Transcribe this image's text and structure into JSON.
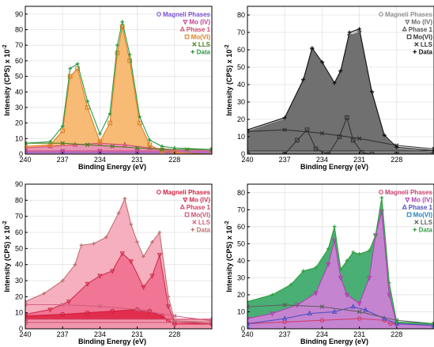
{
  "chart_data": [
    {
      "type": "area",
      "xlabel": "Binding Energy (eV)",
      "ylabel": "Intensity (CPS) x 10",
      "ylabel_exponent": "-2",
      "xlim": [
        240,
        225
      ],
      "ylim": [
        0,
        95
      ],
      "x_ticks": [
        "240",
        "237",
        "234",
        "231",
        "228"
      ],
      "y_ticks": [
        "0",
        "10",
        "20",
        "30",
        "40",
        "50",
        "60",
        "70",
        "80",
        "90"
      ],
      "legend_position": "top-right",
      "series": [
        {
          "name": "Magneli Phases",
          "color": "#7b4fd0",
          "marker": "circle",
          "fill": "",
          "x": [
            240,
            237,
            234,
            231,
            228,
            225
          ],
          "y": [
            1,
            1,
            1,
            1,
            1,
            1
          ]
        },
        {
          "name": "Mo (IV)",
          "color": "#c04090",
          "marker": "triangle-down",
          "fill": "",
          "x": [
            240,
            237,
            234,
            231,
            228,
            225
          ],
          "y": [
            2,
            2,
            2,
            2,
            2,
            2
          ]
        },
        {
          "name": "Phase 1",
          "color": "#d05070",
          "marker": "triangle-up",
          "fill": "#e890b8",
          "x": [
            240,
            238,
            236,
            234,
            232,
            230,
            228,
            225
          ],
          "y": [
            4,
            5,
            6,
            7,
            6,
            4,
            3,
            3
          ]
        },
        {
          "name": "Mo(VI)",
          "color": "#e08020",
          "marker": "square",
          "fill": "#f6b56a",
          "x": [
            240,
            238,
            237,
            236.4,
            235.8,
            235,
            234,
            233.2,
            232.6,
            232.2,
            231.6,
            230.8,
            230,
            229,
            228,
            225
          ],
          "y": [
            5,
            6,
            15,
            50,
            55,
            30,
            8,
            20,
            65,
            82,
            60,
            20,
            6,
            2,
            1,
            0
          ]
        },
        {
          "name": "LLS",
          "color": "#508020",
          "marker": "x",
          "fill": "",
          "x": [
            240,
            237,
            235,
            233,
            231,
            229,
            227,
            225
          ],
          "y": [
            7,
            7,
            6,
            5,
            4,
            3,
            3,
            3
          ]
        },
        {
          "name": "Data",
          "color": "#2a9a40",
          "marker": "plus",
          "fill": "",
          "x": [
            240,
            238,
            237,
            236.4,
            235.8,
            235,
            234,
            233.2,
            232.6,
            232.2,
            231.6,
            230.8,
            230,
            229,
            228,
            225
          ],
          "y": [
            7,
            8,
            18,
            55,
            58,
            34,
            13,
            26,
            70,
            85,
            64,
            24,
            9,
            5,
            4,
            3
          ]
        }
      ]
    },
    {
      "type": "area",
      "xlabel": "Binding Energy (eV)",
      "ylabel": "Intensity (CPS) x 10",
      "ylabel_exponent": "-2",
      "xlim": [
        240,
        225
      ],
      "ylim": [
        0,
        85
      ],
      "x_ticks": [
        "240",
        "237",
        "234",
        "231",
        "228"
      ],
      "y_ticks": [
        "0",
        "10",
        "20",
        "30",
        "40",
        "50",
        "60",
        "70",
        "80"
      ],
      "legend_position": "top-right",
      "series": [
        {
          "name": "Magneli Phases",
          "color": "#909090",
          "marker": "circle",
          "fill": "",
          "x": [
            240,
            225
          ],
          "y": [
            1,
            1
          ]
        },
        {
          "name": "Mo (IV)",
          "color": "#6a6a6a",
          "marker": "triangle-down",
          "fill": "#696969",
          "x": [
            240,
            237,
            235.5,
            234.8,
            234,
            233,
            232.5,
            231.8,
            231,
            230,
            229,
            228,
            225
          ],
          "y": [
            13,
            20,
            42,
            60,
            52,
            40,
            47,
            68,
            70,
            35,
            10,
            3,
            1
          ]
        },
        {
          "name": "Phase 1",
          "color": "#505050",
          "marker": "triangle-up",
          "fill": "",
          "x": [
            240,
            225
          ],
          "y": [
            2,
            2
          ]
        },
        {
          "name": "Mo(VI)",
          "color": "#333333",
          "marker": "square",
          "fill": "",
          "x": [
            240,
            237,
            236,
            235.2,
            234.5,
            233.5,
            232.6,
            232,
            231.5,
            230.8,
            230,
            228,
            225
          ],
          "y": [
            0,
            0,
            8,
            14,
            3,
            0,
            10,
            21,
            8,
            1,
            0,
            0,
            0
          ]
        },
        {
          "name": "LLS",
          "color": "#333333",
          "marker": "x",
          "fill": "",
          "x": [
            240,
            237,
            234,
            231,
            228,
            225
          ],
          "y": [
            13,
            14,
            12,
            9,
            5,
            3
          ]
        },
        {
          "name": "Data",
          "color": "#111111",
          "marker": "plus",
          "fill": "#b8b8b8",
          "x": [
            240,
            237,
            235.5,
            234.8,
            234,
            233,
            232.5,
            231.8,
            231,
            230,
            229,
            228,
            225
          ],
          "y": [
            14,
            21,
            43,
            61,
            53,
            41,
            48,
            70,
            72,
            36,
            11,
            4,
            2
          ]
        }
      ]
    },
    {
      "type": "area",
      "xlabel": "Binding Energy (eV)",
      "ylabel": "Intensity (CPS) x 10",
      "ylabel_exponent": "-2",
      "xlim": [
        240,
        225
      ],
      "ylim": [
        0,
        90
      ],
      "x_ticks": [
        "240",
        "237",
        "234",
        "231",
        "228"
      ],
      "y_ticks": [
        "0",
        "10",
        "20",
        "30",
        "40",
        "50",
        "60",
        "70",
        "80",
        "90"
      ],
      "legend_position": "top-right",
      "series": [
        {
          "name": "Magneli Phases",
          "color": "#d02040",
          "marker": "circle",
          "fill": "#e02848",
          "x": [
            240,
            237,
            235,
            233,
            231,
            230,
            229,
            228.5,
            228,
            225
          ],
          "y": [
            8,
            9,
            10,
            11,
            12,
            11,
            8,
            5,
            3,
            3
          ]
        },
        {
          "name": "Mo (IV)",
          "color": "#d03050",
          "marker": "triangle-down",
          "fill": "#f07090",
          "x": [
            240,
            238,
            236.5,
            235,
            234,
            233,
            232.2,
            231.5,
            230.5,
            229.8,
            229.2,
            228.5,
            228,
            225
          ],
          "y": [
            9,
            12,
            17,
            28,
            33,
            36,
            47,
            42,
            26,
            33,
            46,
            14,
            4,
            3
          ]
        },
        {
          "name": "Phase 1",
          "color": "#d04060",
          "marker": "triangle-up",
          "fill": "#f2a0b4",
          "x": [
            240,
            225
          ],
          "y": [
            6,
            6
          ]
        },
        {
          "name": "Mo(VI)",
          "color": "#d05070",
          "marker": "square",
          "fill": "",
          "x": [
            240,
            225
          ],
          "y": [
            4,
            4
          ]
        },
        {
          "name": "LLS",
          "color": "#d06080",
          "marker": "x",
          "fill": "",
          "x": [
            240,
            237,
            234,
            231,
            228,
            225
          ],
          "y": [
            15,
            15,
            14,
            12,
            8,
            5
          ]
        },
        {
          "name": "Data",
          "color": "#c07070",
          "marker": "plus",
          "fill": "#f5a8b8",
          "x": [
            240,
            238.5,
            237,
            236,
            235.5,
            234.5,
            233.5,
            232.5,
            232,
            231.5,
            231,
            230.5,
            229.8,
            229.2,
            228.5,
            228,
            225
          ],
          "y": [
            17,
            22,
            30,
            40,
            52,
            53,
            57,
            72,
            81,
            65,
            54,
            45,
            54,
            60,
            20,
            5,
            4
          ]
        }
      ]
    },
    {
      "type": "area",
      "xlabel": "Binding Energy (eV)",
      "ylabel": "Intensity (CPS) x 10",
      "ylabel_exponent": "-2",
      "xlim": [
        240,
        225
      ],
      "ylim": [
        0,
        85
      ],
      "x_ticks": [
        "240",
        "237",
        "234",
        "231",
        "228"
      ],
      "y_ticks": [
        "0",
        "10",
        "20",
        "30",
        "40",
        "50",
        "60",
        "70",
        "80"
      ],
      "legend_position": "top-right",
      "series": [
        {
          "name": "Magneli Phases",
          "color": "#d04070",
          "marker": "circle",
          "fill": "",
          "x": [
            240,
            237,
            234,
            231,
            229,
            228.5,
            225
          ],
          "y": [
            3,
            4,
            5,
            6,
            5,
            3,
            2
          ]
        },
        {
          "name": "Mo (IV)",
          "color": "#b040b0",
          "marker": "triangle-down",
          "fill": "#d080d8",
          "x": [
            240,
            238,
            236,
            234.5,
            233.5,
            233,
            232.5,
            232,
            231,
            230.2,
            229.7,
            229.2,
            228.6,
            228,
            225
          ],
          "y": [
            6,
            9,
            14,
            21,
            38,
            52,
            30,
            20,
            15,
            30,
            55,
            69,
            20,
            3,
            2
          ]
        },
        {
          "name": "Phase 1",
          "color": "#5050c0",
          "marker": "triangle-up",
          "fill": "",
          "x": [
            240,
            237,
            235,
            233,
            231.5,
            230.5,
            229,
            228,
            225
          ],
          "y": [
            3,
            6,
            9,
            10,
            13,
            11,
            6,
            3,
            2
          ]
        },
        {
          "name": "Mo(VI)",
          "color": "#2080c0",
          "marker": "square",
          "fill": "",
          "x": [
            240,
            225
          ],
          "y": [
            0,
            0
          ]
        },
        {
          "name": "LLS",
          "color": "#606060",
          "marker": "x",
          "fill": "",
          "x": [
            240,
            237,
            234,
            231,
            228,
            225
          ],
          "y": [
            13,
            14,
            13,
            10,
            5,
            3
          ]
        },
        {
          "name": "Data",
          "color": "#30a040",
          "marker": "plus",
          "fill": "#3aa868",
          "x": [
            240,
            238,
            236.5,
            235.5,
            234.5,
            233.5,
            233,
            232.5,
            232,
            231.5,
            231,
            230.2,
            229.7,
            229.2,
            228.6,
            228,
            225
          ],
          "y": [
            16,
            20,
            26,
            34,
            36,
            47,
            60,
            35,
            40,
            45,
            44,
            46,
            55,
            77,
            27,
            4,
            3
          ]
        }
      ]
    }
  ]
}
